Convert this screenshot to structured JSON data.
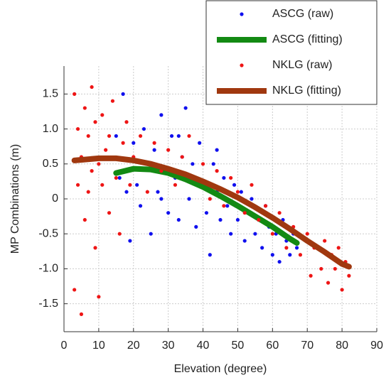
{
  "chart_data": {
    "type": "scatter",
    "xlabel": "Elevation (degree)",
    "ylabel": "MP Combinations (m)",
    "xlim": [
      0,
      90
    ],
    "xticks": [
      0,
      10,
      20,
      30,
      40,
      50,
      60,
      70,
      80,
      90
    ],
    "ylim": [
      -1.9,
      1.9
    ],
    "yticks": [
      {
        "value": -1.5,
        "label": "-1.5"
      },
      {
        "value": -1,
        "label": "-1.0"
      },
      {
        "value": -0.5,
        "label": "-0.5"
      },
      0,
      0.5,
      {
        "value": 1,
        "label": "1.0"
      },
      1.5
    ],
    "grid": true,
    "legend": "upper right",
    "series": [
      {
        "name": "ASCG (raw)",
        "color": "#1010ee",
        "mode": "markers",
        "x": [
          15,
          16,
          17,
          18,
          19,
          20,
          21,
          22,
          23,
          24,
          25,
          26,
          27,
          28,
          29,
          30,
          31,
          32,
          33,
          34,
          35,
          36,
          37,
          38,
          39,
          40,
          41,
          42,
          43,
          44,
          45,
          46,
          47,
          48,
          49,
          50,
          51,
          52,
          53,
          54,
          55,
          56,
          57,
          58,
          59,
          60,
          61,
          62,
          63,
          64,
          65,
          66,
          67,
          28,
          33,
          44
        ],
        "y": [
          0.9,
          0.3,
          1.5,
          0.1,
          -0.6,
          0.8,
          0.2,
          -0.1,
          1.0,
          0.5,
          -0.5,
          0.7,
          0.1,
          1.2,
          0.4,
          -0.2,
          0.9,
          0.3,
          -0.3,
          0.6,
          1.3,
          0.0,
          0.5,
          -0.4,
          0.8,
          0.2,
          -0.2,
          -0.8,
          0.5,
          0.1,
          -0.3,
          0.3,
          -0.1,
          -0.5,
          0.2,
          -0.3,
          0.1,
          -0.6,
          -0.2,
          0.0,
          -0.5,
          -0.3,
          -0.7,
          -0.1,
          -0.4,
          -0.8,
          -0.5,
          -0.9,
          -0.3,
          -0.6,
          -0.8,
          -0.5,
          -0.7,
          0.0,
          0.9,
          0.7
        ]
      },
      {
        "name": "ASCG (fitting)",
        "color": "#138a13",
        "mode": "lines",
        "x": [
          15,
          20,
          25,
          30,
          35,
          40,
          45,
          50,
          55,
          60,
          65,
          67
        ],
        "y": [
          0.37,
          0.43,
          0.42,
          0.37,
          0.28,
          0.17,
          0.04,
          -0.1,
          -0.25,
          -0.4,
          -0.57,
          -0.63
        ]
      },
      {
        "name": "NKLG (raw)",
        "color": "#ee1515",
        "mode": "markers",
        "x": [
          3,
          3,
          4,
          4,
          5,
          5,
          6,
          6,
          7,
          7,
          8,
          8,
          9,
          9,
          10,
          10,
          11,
          11,
          12,
          13,
          13,
          14,
          15,
          16,
          17,
          18,
          19,
          20,
          22,
          24,
          26,
          28,
          30,
          32,
          34,
          36,
          38,
          40,
          42,
          44,
          46,
          48,
          50,
          52,
          54,
          56,
          58,
          60,
          62,
          64,
          66,
          68,
          70,
          71,
          72,
          74,
          75,
          76,
          77,
          78,
          79,
          80,
          81,
          82
        ],
        "y": [
          1.5,
          -1.3,
          0.2,
          1.0,
          -1.65,
          0.6,
          1.3,
          -0.3,
          0.9,
          0.1,
          1.6,
          0.4,
          -0.7,
          1.1,
          0.5,
          -1.4,
          0.2,
          1.2,
          0.7,
          -0.2,
          0.9,
          1.4,
          0.3,
          -0.5,
          0.8,
          1.1,
          0.2,
          0.6,
          0.9,
          0.1,
          0.8,
          0.4,
          0.7,
          0.2,
          0.6,
          0.9,
          0.3,
          0.5,
          0.0,
          0.4,
          -0.1,
          0.3,
          0.1,
          -0.2,
          0.2,
          -0.3,
          -0.1,
          -0.5,
          -0.2,
          -0.7,
          -0.4,
          -0.8,
          -0.5,
          -1.1,
          -0.7,
          -1.0,
          -0.6,
          -1.2,
          -0.8,
          -1.0,
          -0.7,
          -1.3,
          -0.9,
          -1.1
        ]
      },
      {
        "name": "NKLG (fitting)",
        "color": "#a0380f",
        "mode": "lines",
        "x": [
          3,
          10,
          15,
          20,
          25,
          30,
          35,
          40,
          45,
          50,
          55,
          60,
          65,
          70,
          75,
          80,
          82
        ],
        "y": [
          0.55,
          0.58,
          0.58,
          0.55,
          0.5,
          0.43,
          0.35,
          0.25,
          0.14,
          0.02,
          -0.12,
          -0.27,
          -0.43,
          -0.6,
          -0.76,
          -0.93,
          -0.97
        ]
      }
    ]
  }
}
